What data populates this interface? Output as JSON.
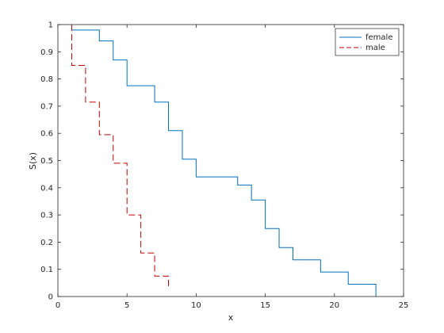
{
  "chart_data": {
    "type": "line",
    "xlabel": "x",
    "ylabel": "S(x)",
    "xlim": [
      0,
      25
    ],
    "ylim": [
      0,
      1
    ],
    "xticks": [
      0,
      5,
      10,
      15,
      20,
      25
    ],
    "yticks": [
      0,
      0.1,
      0.2,
      0.3,
      0.4,
      0.5,
      0.6,
      0.7,
      0.8,
      0.9,
      1
    ],
    "xtick_labels": [
      "0",
      "5",
      "10",
      "15",
      "20",
      "25"
    ],
    "ytick_labels": [
      "0",
      "0.1",
      "0.2",
      "0.3",
      "0.4",
      "0.5",
      "0.6",
      "0.7",
      "0.8",
      "0.9",
      "1"
    ],
    "grid": false,
    "legend_position": "top-right",
    "series": [
      {
        "name": "female",
        "style": "solid-stairs",
        "color": "#0072BD",
        "x": [
          1,
          3,
          4,
          5,
          7,
          8,
          9,
          10,
          13,
          14,
          15,
          16,
          17,
          19,
          21,
          23
        ],
        "y": [
          0.98,
          0.94,
          0.87,
          0.775,
          0.715,
          0.61,
          0.505,
          0.44,
          0.41,
          0.355,
          0.25,
          0.18,
          0.135,
          0.09,
          0.045,
          0
        ]
      },
      {
        "name": "male",
        "style": "dashed-stairs",
        "color": "#C00000",
        "x": [
          1,
          1,
          2,
          3,
          4,
          5,
          6,
          7,
          8
        ],
        "y": [
          1,
          0.85,
          0.715,
          0.595,
          0.49,
          0.3,
          0.16,
          0.075,
          0.035
        ]
      }
    ]
  }
}
